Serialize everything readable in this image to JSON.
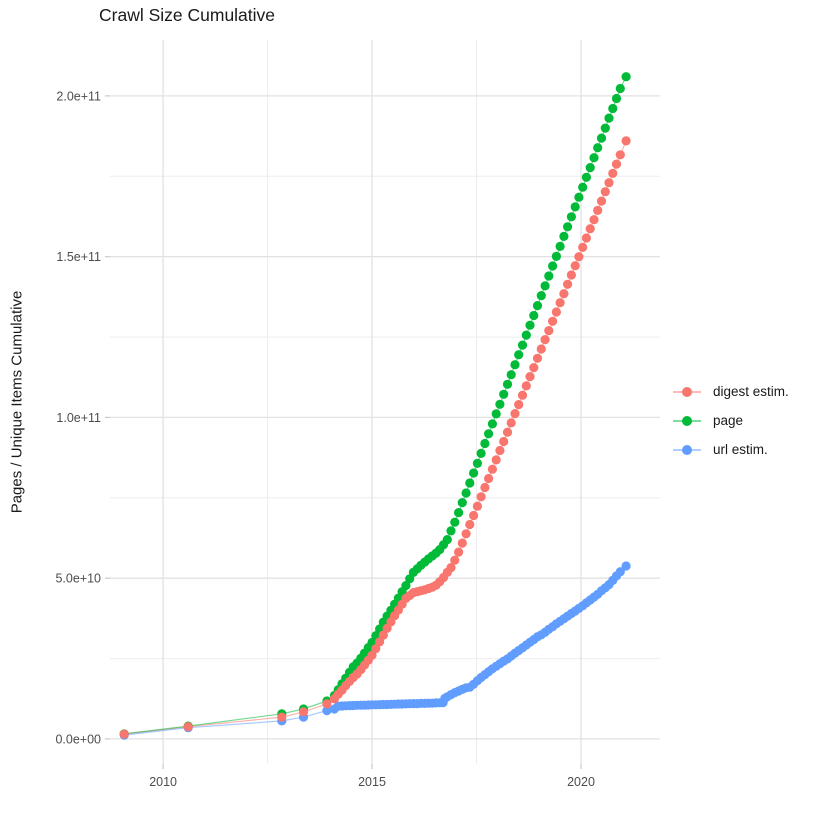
{
  "chart_data": {
    "type": "line",
    "title": "Crawl Size Cumulative",
    "xlabel": "",
    "ylabel": "Pages / Unique Items Cumulative",
    "grid": true,
    "legend_position": "right",
    "xlim": [
      2008.73,
      2021.89
    ],
    "ylim": [
      -7800000000.0,
      217400000000.0
    ],
    "x_ticks": [
      {
        "value": 2010,
        "label": "2010"
      },
      {
        "value": 2015,
        "label": "2015"
      },
      {
        "value": 2020,
        "label": "2020"
      }
    ],
    "x_minor": [
      2012.5,
      2017.5
    ],
    "y_ticks": [
      {
        "value": 0.0,
        "label": "0.0e+00"
      },
      {
        "value": 50000000000.0,
        "label": "5.0e+10"
      },
      {
        "value": 100000000000.0,
        "label": "1.0e+11"
      },
      {
        "value": 150000000000.0,
        "label": "1.5e+11"
      },
      {
        "value": 200000000000.0,
        "label": "2.0e+11"
      }
    ],
    "y_minor": [
      25000000000.0,
      75000000000.0,
      125000000000.0,
      175000000000.0
    ],
    "colors": {
      "title": "#1a1a1a",
      "tick_label": "#4d4d4d",
      "tick_mark": "#c9c9c9",
      "grid_major": "#e2e2e2",
      "grid_minor": "#ededed",
      "background": "#ffffff"
    },
    "series": [
      {
        "name": "digest estim.",
        "color": "#F8766D",
        "points": [
          [
            2009.07,
            1500000000.0
          ],
          [
            2010.6,
            3800000000.0
          ],
          [
            2012.84,
            6800000000.0
          ],
          [
            2013.36,
            8400000000.0
          ],
          [
            2013.92,
            10900000000.0
          ],
          [
            2014.1,
            12500000000.0
          ],
          [
            2014.19,
            13900000000.0
          ],
          [
            2014.28,
            15200000000.0
          ],
          [
            2014.37,
            16600000000.0
          ],
          [
            2014.46,
            17900000000.0
          ],
          [
            2014.55,
            19100000000.0
          ],
          [
            2014.64,
            20200000000.0
          ],
          [
            2014.73,
            21500000000.0
          ],
          [
            2014.82,
            23000000000.0
          ],
          [
            2014.91,
            24500000000.0
          ],
          [
            2015.0,
            26000000000.0
          ],
          [
            2015.09,
            28100000000.0
          ],
          [
            2015.18,
            30200000000.0
          ],
          [
            2015.27,
            32300000000.0
          ],
          [
            2015.36,
            34400000000.0
          ],
          [
            2015.45,
            36400000000.0
          ],
          [
            2015.54,
            38300000000.0
          ],
          [
            2015.63,
            40100000000.0
          ],
          [
            2015.72,
            41900000000.0
          ],
          [
            2015.81,
            43700000000.0
          ],
          [
            2015.9,
            44600000000.0
          ],
          [
            2015.99,
            45500000000.0
          ],
          [
            2016.08,
            45800000000.0
          ],
          [
            2016.17,
            46100000000.0
          ],
          [
            2016.26,
            46400000000.0
          ],
          [
            2016.35,
            46800000000.0
          ],
          [
            2016.44,
            47200000000.0
          ],
          [
            2016.53,
            47800000000.0
          ],
          [
            2016.62,
            48900000000.0
          ],
          [
            2016.71,
            50200000000.0
          ],
          [
            2016.8,
            51800000000.0
          ],
          [
            2016.89,
            53300000000.0
          ],
          [
            2016.98,
            55600000000.0
          ],
          [
            2017.07,
            58100000000.0
          ],
          [
            2017.16,
            60900000000.0
          ],
          [
            2017.25,
            63800000000.0
          ],
          [
            2017.34,
            66700000000.0
          ],
          [
            2017.43,
            69500000000.0
          ],
          [
            2017.52,
            72400000000.0
          ],
          [
            2017.61,
            75300000000.0
          ],
          [
            2017.7,
            78200000000.0
          ],
          [
            2017.79,
            81000000000.0
          ],
          [
            2017.88,
            83900000000.0
          ],
          [
            2017.97,
            86800000000.0
          ],
          [
            2018.06,
            89700000000.0
          ],
          [
            2018.15,
            92500000000.0
          ],
          [
            2018.24,
            95400000000.0
          ],
          [
            2018.33,
            98300000000.0
          ],
          [
            2018.42,
            101200000000.0
          ],
          [
            2018.51,
            104000000000.0
          ],
          [
            2018.6,
            106900000000.0
          ],
          [
            2018.69,
            109800000000.0
          ],
          [
            2018.78,
            112700000000.0
          ],
          [
            2018.87,
            115500000000.0
          ],
          [
            2018.96,
            118400000000.0
          ],
          [
            2019.05,
            121300000000.0
          ],
          [
            2019.14,
            124200000000.0
          ],
          [
            2019.23,
            127000000000.0
          ],
          [
            2019.32,
            129900000000.0
          ],
          [
            2019.41,
            132800000000.0
          ],
          [
            2019.5,
            135700000000.0
          ],
          [
            2019.59,
            138500000000.0
          ],
          [
            2019.68,
            141400000000.0
          ],
          [
            2019.77,
            144300000000.0
          ],
          [
            2019.86,
            147200000000.0
          ],
          [
            2019.95,
            150000000000.0
          ],
          [
            2020.04,
            152900000000.0
          ],
          [
            2020.13,
            155800000000.0
          ],
          [
            2020.22,
            158700000000.0
          ],
          [
            2020.31,
            161500000000.0
          ],
          [
            2020.4,
            164400000000.0
          ],
          [
            2020.49,
            167300000000.0
          ],
          [
            2020.58,
            170200000000.0
          ],
          [
            2020.67,
            173000000000.0
          ],
          [
            2020.76,
            175900000000.0
          ],
          [
            2020.85,
            178800000000.0
          ],
          [
            2020.94,
            181700000000.0
          ],
          [
            2021.08,
            186000000000.0
          ]
        ]
      },
      {
        "name": "page",
        "color": "#00BA38",
        "points": [
          [
            2009.07,
            1600000000.0
          ],
          [
            2010.6,
            4000000000.0
          ],
          [
            2012.84,
            7800000000.0
          ],
          [
            2013.36,
            9300000000.0
          ],
          [
            2013.92,
            11800000000.0
          ],
          [
            2014.1,
            13500000000.0
          ],
          [
            2014.19,
            15300000000.0
          ],
          [
            2014.28,
            17100000000.0
          ],
          [
            2014.37,
            18900000000.0
          ],
          [
            2014.46,
            20700000000.0
          ],
          [
            2014.55,
            22400000000.0
          ],
          [
            2014.64,
            23600000000.0
          ],
          [
            2014.73,
            25100000000.0
          ],
          [
            2014.82,
            26700000000.0
          ],
          [
            2014.91,
            28400000000.0
          ],
          [
            2015.0,
            30000000000.0
          ],
          [
            2015.09,
            32100000000.0
          ],
          [
            2015.18,
            34200000000.0
          ],
          [
            2015.27,
            36300000000.0
          ],
          [
            2015.36,
            38200000000.0
          ],
          [
            2015.45,
            40000000000.0
          ],
          [
            2015.54,
            41900000000.0
          ],
          [
            2015.63,
            43800000000.0
          ],
          [
            2015.72,
            45800000000.0
          ],
          [
            2015.81,
            47700000000.0
          ],
          [
            2015.9,
            49800000000.0
          ],
          [
            2015.99,
            51800000000.0
          ],
          [
            2016.08,
            52900000000.0
          ],
          [
            2016.17,
            54000000000.0
          ],
          [
            2016.26,
            55000000000.0
          ],
          [
            2016.35,
            56000000000.0
          ],
          [
            2016.44,
            56900000000.0
          ],
          [
            2016.53,
            57800000000.0
          ],
          [
            2016.62,
            58900000000.0
          ],
          [
            2016.71,
            60400000000.0
          ],
          [
            2016.8,
            62000000000.0
          ],
          [
            2016.89,
            64700000000.0
          ],
          [
            2016.98,
            67400000000.0
          ],
          [
            2017.07,
            70400000000.0
          ],
          [
            2017.16,
            73500000000.0
          ],
          [
            2017.25,
            76500000000.0
          ],
          [
            2017.34,
            79600000000.0
          ],
          [
            2017.43,
            82700000000.0
          ],
          [
            2017.52,
            85700000000.0
          ],
          [
            2017.61,
            88800000000.0
          ],
          [
            2017.7,
            91900000000.0
          ],
          [
            2017.79,
            94900000000.0
          ],
          [
            2017.88,
            98000000000.0
          ],
          [
            2017.97,
            101100000000.0
          ],
          [
            2018.06,
            104100000000.0
          ],
          [
            2018.15,
            107200000000.0
          ],
          [
            2018.24,
            110300000000.0
          ],
          [
            2018.33,
            113300000000.0
          ],
          [
            2018.42,
            116400000000.0
          ],
          [
            2018.51,
            119500000000.0
          ],
          [
            2018.6,
            122500000000.0
          ],
          [
            2018.69,
            125600000000.0
          ],
          [
            2018.78,
            128700000000.0
          ],
          [
            2018.87,
            131700000000.0
          ],
          [
            2018.96,
            134800000000.0
          ],
          [
            2019.05,
            137900000000.0
          ],
          [
            2019.14,
            140900000000.0
          ],
          [
            2019.23,
            144000000000.0
          ],
          [
            2019.32,
            147100000000.0
          ],
          [
            2019.41,
            150100000000.0
          ],
          [
            2019.5,
            153200000000.0
          ],
          [
            2019.59,
            156300000000.0
          ],
          [
            2019.68,
            159300000000.0
          ],
          [
            2019.77,
            162400000000.0
          ],
          [
            2019.86,
            165500000000.0
          ],
          [
            2019.95,
            168500000000.0
          ],
          [
            2020.04,
            171600000000.0
          ],
          [
            2020.13,
            174700000000.0
          ],
          [
            2020.22,
            177700000000.0
          ],
          [
            2020.31,
            180800000000.0
          ],
          [
            2020.4,
            183900000000.0
          ],
          [
            2020.49,
            186900000000.0
          ],
          [
            2020.58,
            190000000000.0
          ],
          [
            2020.67,
            193100000000.0
          ],
          [
            2020.76,
            196100000000.0
          ],
          [
            2020.85,
            199200000000.0
          ],
          [
            2020.94,
            202300000000.0
          ],
          [
            2021.08,
            206000000000.0
          ]
        ]
      },
      {
        "name": "url estim.",
        "color": "#619CFF",
        "points": [
          [
            2009.07,
            1200000000.0
          ],
          [
            2010.6,
            3500000000.0
          ],
          [
            2012.84,
            5600000000.0
          ],
          [
            2013.36,
            6800000000.0
          ],
          [
            2013.92,
            8800000000.0
          ],
          [
            2014.1,
            9300000000.0
          ],
          [
            2014.19,
            10200000000.0
          ],
          [
            2014.28,
            10250000000.0
          ],
          [
            2014.37,
            10300000000.0
          ],
          [
            2014.46,
            10350000000.0
          ],
          [
            2014.55,
            10400000000.0
          ],
          [
            2014.64,
            10450000000.0
          ],
          [
            2014.73,
            10500000000.0
          ],
          [
            2014.82,
            10500000000.0
          ],
          [
            2014.91,
            10550000000.0
          ],
          [
            2015.0,
            10600000000.0
          ],
          [
            2015.09,
            10600000000.0
          ],
          [
            2015.18,
            10650000000.0
          ],
          [
            2015.27,
            10700000000.0
          ],
          [
            2015.36,
            10700000000.0
          ],
          [
            2015.45,
            10750000000.0
          ],
          [
            2015.54,
            10800000000.0
          ],
          [
            2015.63,
            10850000000.0
          ],
          [
            2015.72,
            10850000000.0
          ],
          [
            2015.81,
            10900000000.0
          ],
          [
            2015.9,
            10950000000.0
          ],
          [
            2015.99,
            11000000000.0
          ],
          [
            2016.08,
            11000000000.0
          ],
          [
            2016.17,
            11050000000.0
          ],
          [
            2016.26,
            11050000000.0
          ],
          [
            2016.35,
            11100000000.0
          ],
          [
            2016.44,
            11100000000.0
          ],
          [
            2016.53,
            11200000000.0
          ],
          [
            2016.62,
            11250000000.0
          ],
          [
            2016.7,
            11300000000.0
          ],
          [
            2016.74,
            12600000000.0
          ],
          [
            2016.8,
            13100000000.0
          ],
          [
            2016.89,
            13800000000.0
          ],
          [
            2016.98,
            14400000000.0
          ],
          [
            2017.07,
            14900000000.0
          ],
          [
            2017.16,
            15400000000.0
          ],
          [
            2017.25,
            15900000000.0
          ],
          [
            2017.34,
            16100000000.0
          ],
          [
            2017.43,
            17000000000.0
          ],
          [
            2017.52,
            18100000000.0
          ],
          [
            2017.61,
            19100000000.0
          ],
          [
            2017.7,
            20000000000.0
          ],
          [
            2017.79,
            20900000000.0
          ],
          [
            2017.88,
            21800000000.0
          ],
          [
            2017.97,
            22600000000.0
          ],
          [
            2018.06,
            23400000000.0
          ],
          [
            2018.15,
            24200000000.0
          ],
          [
            2018.24,
            24900000000.0
          ],
          [
            2018.33,
            25800000000.0
          ],
          [
            2018.42,
            26700000000.0
          ],
          [
            2018.51,
            27500000000.0
          ],
          [
            2018.6,
            28300000000.0
          ],
          [
            2018.69,
            29200000000.0
          ],
          [
            2018.78,
            30100000000.0
          ],
          [
            2018.87,
            30900000000.0
          ],
          [
            2018.96,
            31800000000.0
          ],
          [
            2019.05,
            32400000000.0
          ],
          [
            2019.14,
            33200000000.0
          ],
          [
            2019.23,
            34100000000.0
          ],
          [
            2019.32,
            34900000000.0
          ],
          [
            2019.41,
            35800000000.0
          ],
          [
            2019.5,
            36600000000.0
          ],
          [
            2019.59,
            37400000000.0
          ],
          [
            2019.68,
            38200000000.0
          ],
          [
            2019.77,
            39000000000.0
          ],
          [
            2019.86,
            39800000000.0
          ],
          [
            2019.95,
            40600000000.0
          ],
          [
            2020.04,
            41400000000.0
          ],
          [
            2020.13,
            42300000000.0
          ],
          [
            2020.22,
            43200000000.0
          ],
          [
            2020.31,
            44100000000.0
          ],
          [
            2020.4,
            45000000000.0
          ],
          [
            2020.49,
            46100000000.0
          ],
          [
            2020.58,
            47000000000.0
          ],
          [
            2020.67,
            48000000000.0
          ],
          [
            2020.76,
            49300000000.0
          ],
          [
            2020.85,
            50700000000.0
          ],
          [
            2020.94,
            52000000000.0
          ],
          [
            2021.08,
            53800000000.0
          ]
        ]
      }
    ]
  }
}
